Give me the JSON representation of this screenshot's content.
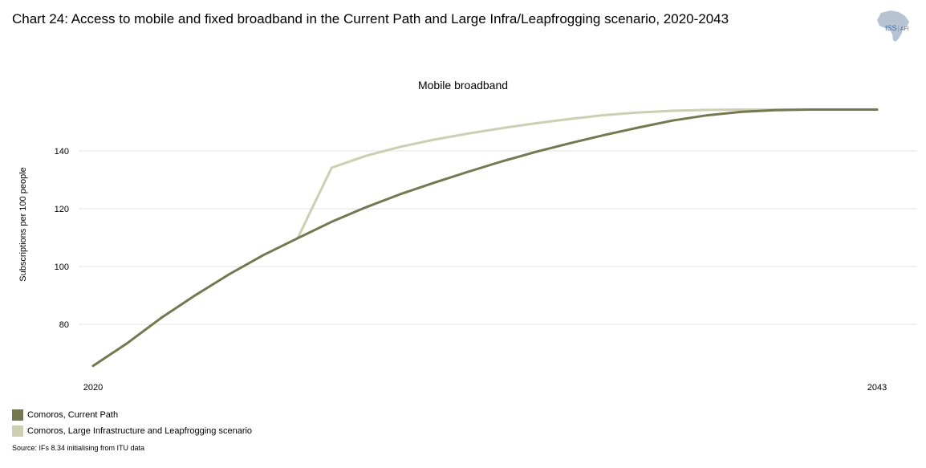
{
  "header": {
    "title": "Chart 24: Access to mobile and fixed broadband in the Current Path and Large Infra/Leapfrogging scenario, 2020-2043",
    "logo_text": "ISS",
    "logo_sub": "AFI"
  },
  "footer": {
    "source": "Source: IFs 8.34 initialising from ITU data"
  },
  "colors": {
    "current_path": "#737850",
    "scenario": "#cdcfb2"
  },
  "chart_data": {
    "type": "line",
    "title": "Mobile broadband",
    "xlabel": "",
    "ylabel": "Subscriptions per 100 people",
    "x_tick_labels": [
      "2020",
      "2043"
    ],
    "y_ticks": [
      80,
      100,
      120,
      140
    ],
    "xlim": [
      2020,
      2043
    ],
    "ylim": [
      62,
      160
    ],
    "grid": true,
    "legend_position": "bottom-left",
    "x": [
      2020,
      2021,
      2022,
      2023,
      2024,
      2025,
      2026,
      2027,
      2028,
      2029,
      2030,
      2031,
      2032,
      2033,
      2034,
      2035,
      2036,
      2037,
      2038,
      2039,
      2040,
      2041,
      2042,
      2043
    ],
    "series": [
      {
        "name": "Comoros, Current Path",
        "color": "#737850",
        "values": [
          65.7,
          73.5,
          82.3,
          90.1,
          97.4,
          104.0,
          109.8,
          115.5,
          120.5,
          125.0,
          129.0,
          132.8,
          136.4,
          139.7,
          142.7,
          145.5,
          148.1,
          150.5,
          152.3,
          153.5,
          154.1,
          154.3,
          154.3,
          154.3
        ]
      },
      {
        "name": "Comoros, Large Infrastructure and Leapfrogging scenario",
        "color": "#cdcfb2",
        "values": [
          null,
          null,
          null,
          null,
          null,
          null,
          109.8,
          134.2,
          138.3,
          141.4,
          143.9,
          146.0,
          147.9,
          149.6,
          151.1,
          152.4,
          153.3,
          153.9,
          154.2,
          154.3,
          154.3,
          154.3,
          154.3,
          154.3
        ]
      }
    ]
  }
}
